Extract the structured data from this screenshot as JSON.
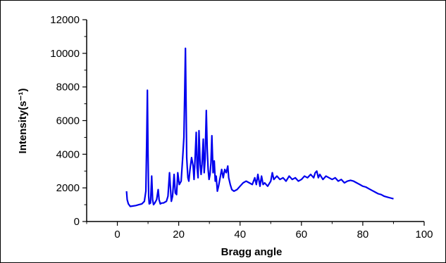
{
  "chart_data": {
    "type": "line",
    "title": "",
    "xlabel": "Bragg angle",
    "ylabel": "Intensity(s⁻¹)",
    "xlim": [
      -10,
      100
    ],
    "ylim": [
      0,
      12000
    ],
    "x_ticks": [
      0,
      20,
      40,
      60,
      80,
      100
    ],
    "y_ticks": [
      0,
      2000,
      4000,
      6000,
      8000,
      10000,
      12000
    ],
    "x_tick_labels": [
      "0",
      "20",
      "40",
      "60",
      "80",
      "100"
    ],
    "y_tick_labels": [
      "0",
      "2000",
      "4000",
      "6000",
      "8000",
      "10000",
      "12000"
    ],
    "grid": false,
    "legend": "none",
    "line_color": "#0000ee",
    "series": [
      {
        "x": [
          3.0,
          3.2,
          3.6,
          4.2,
          5.0,
          6.0,
          7.0,
          8.0,
          8.8,
          9.3,
          9.6,
          9.8,
          10.0,
          10.2,
          10.4,
          10.8,
          11.2,
          11.5,
          11.8,
          12.2,
          12.8,
          13.3,
          13.6,
          14.0,
          14.5,
          15.0,
          15.5,
          16.0,
          16.5,
          17.0,
          17.3,
          17.6,
          18.0,
          18.5,
          18.9,
          19.3,
          19.7,
          20.2,
          20.8,
          21.3,
          21.7,
          22.0,
          22.2,
          22.4,
          22.6,
          22.8,
          23.0,
          23.3,
          23.7,
          24.2,
          24.7,
          25.0,
          25.3,
          25.7,
          26.0,
          26.3,
          26.6,
          27.0,
          27.3,
          27.6,
          28.0,
          28.3,
          28.6,
          29.0,
          29.3,
          29.6,
          29.9,
          30.2,
          30.5,
          30.8,
          31.2,
          31.6,
          31.9,
          32.2,
          32.6,
          33.0,
          33.5,
          34.0,
          34.5,
          35.0,
          35.5,
          36.0,
          36.3,
          36.8,
          37.3,
          38.0,
          39.0,
          40.0,
          41.0,
          42.0,
          43.0,
          44.0,
          44.8,
          45.3,
          45.8,
          46.5,
          47.0,
          47.5,
          48.0,
          49.0,
          50.0,
          50.5,
          51.0,
          52.0,
          53.0,
          54.0,
          55.0,
          56.0,
          57.0,
          58.0,
          59.0,
          60.0,
          61.0,
          62.0,
          63.0,
          64.0,
          64.5,
          65.0,
          65.5,
          66.0,
          67.0,
          68.0,
          69.0,
          70.0,
          71.0,
          72.0,
          73.0,
          74.0,
          75.0,
          76.0,
          77.0,
          78.0,
          79.0,
          80.0,
          81.0,
          82.0,
          83.0,
          84.0,
          85.0,
          86.0,
          87.0,
          88.0,
          89.0,
          90.0
        ],
        "y": [
          1800,
          1300,
          1050,
          900,
          920,
          950,
          1000,
          1050,
          1200,
          1800,
          5000,
          7800,
          4000,
          1500,
          1050,
          1100,
          2700,
          1300,
          1000,
          1100,
          1300,
          1900,
          1300,
          1050,
          1100,
          1100,
          1150,
          1200,
          1500,
          2900,
          2000,
          1200,
          1500,
          2800,
          1700,
          1600,
          2900,
          2200,
          2400,
          3800,
          5000,
          8000,
          10300,
          7000,
          3800,
          3200,
          2600,
          2400,
          3100,
          3800,
          3300,
          2500,
          3600,
          5300,
          3200,
          2600,
          5400,
          3400,
          2800,
          3400,
          4900,
          2900,
          3700,
          6600,
          4300,
          3100,
          2500,
          2800,
          3500,
          5100,
          2900,
          3600,
          2400,
          2700,
          1800,
          2100,
          2600,
          3100,
          2600,
          3100,
          2900,
          3300,
          2600,
          2200,
          1900,
          1800,
          1900,
          2100,
          2300,
          2400,
          2300,
          2200,
          2600,
          2200,
          2800,
          2100,
          2700,
          2200,
          2300,
          2100,
          2400,
          2900,
          2500,
          2700,
          2500,
          2600,
          2400,
          2700,
          2500,
          2600,
          2400,
          2500,
          2700,
          2600,
          2800,
          2600,
          2900,
          3000,
          2600,
          2800,
          2500,
          2700,
          2600,
          2500,
          2600,
          2400,
          2500,
          2300,
          2400,
          2450,
          2400,
          2300,
          2200,
          2100,
          2050,
          1950,
          1850,
          1750,
          1650,
          1600,
          1500,
          1450,
          1400,
          1350
        ]
      }
    ]
  }
}
